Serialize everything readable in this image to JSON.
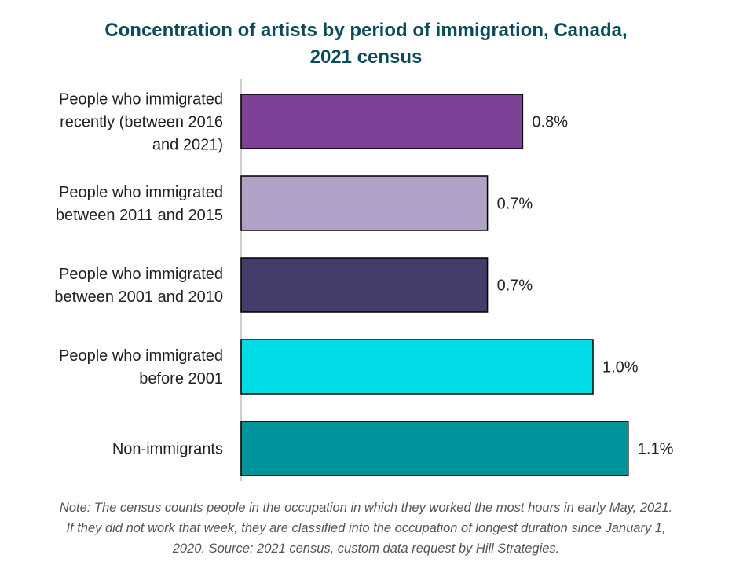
{
  "chart_data": {
    "type": "bar",
    "orientation": "horizontal",
    "title_lines": [
      "Concentration of artists by period of immigration, Canada,",
      "2021 census"
    ],
    "categories": [
      [
        "People who immigrated",
        "recently (between 2016",
        "and 2021)"
      ],
      [
        "People who immigrated",
        "between 2011 and 2015"
      ],
      [
        "People who immigrated",
        "between 2001 and 2010"
      ],
      [
        "People who immigrated",
        "before 2001"
      ],
      [
        "Non-immigrants"
      ]
    ],
    "values": [
      0.8,
      0.7,
      0.7,
      1.0,
      1.1
    ],
    "value_labels": [
      "0.8%",
      "0.7%",
      "0.7%",
      "1.0%",
      "1.1%"
    ],
    "value_range_shown": [
      0,
      1.1
    ],
    "axis_visible": false,
    "grid": false,
    "legend": "none",
    "colors": [
      "#7f4098",
      "#b0a2c7",
      "#463c6c",
      "#00dce6",
      "#00949c"
    ],
    "bar_outline_color": "#000000",
    "title_color": "#0b4b5a",
    "baseline_color": "#d0d0d0"
  },
  "note_lines": [
    "Note: The census counts people in the occupation in which they worked the most hours in early May, 2021.",
    "If they did not work that week, they are classified into the occupation of longest duration since January 1,",
    "2020. Source: 2021 census, custom data request by Hill Strategies."
  ]
}
